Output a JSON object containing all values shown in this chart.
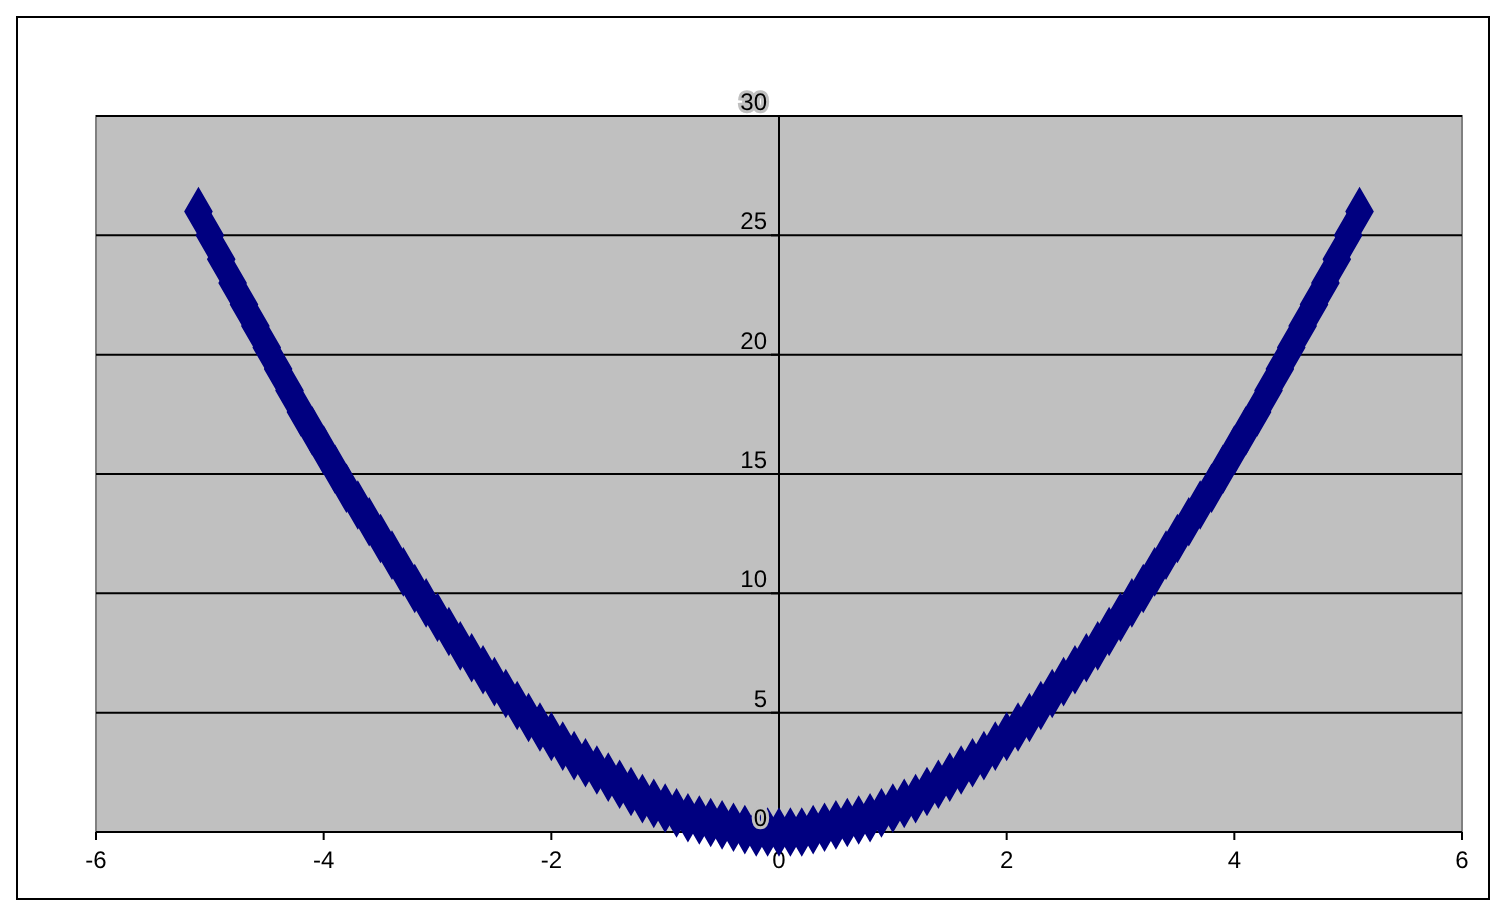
{
  "chart_data": {
    "type": "scatter",
    "marker": "diamond",
    "grid": "y",
    "xlim": [
      -6,
      6
    ],
    "ylim": [
      0,
      30
    ],
    "xticks": [
      -6,
      -4,
      -2,
      0,
      2,
      4,
      6
    ],
    "yticks": [
      0,
      5,
      10,
      15,
      20,
      25,
      30
    ],
    "series": [
      {
        "color": "#000080",
        "x": [
          -5.1,
          -5.0,
          -4.9,
          -4.8,
          -4.7,
          -4.6,
          -4.5,
          -4.4,
          -4.3,
          -4.2,
          -4.1,
          -4.0,
          -3.9,
          -3.8,
          -3.7,
          -3.6,
          -3.5,
          -3.4,
          -3.3,
          -3.2,
          -3.1,
          -3.0,
          -2.9,
          -2.8,
          -2.7,
          -2.6,
          -2.5,
          -2.4,
          -2.3,
          -2.2,
          -2.1,
          -2.0,
          -1.9,
          -1.8,
          -1.7,
          -1.6,
          -1.5,
          -1.4,
          -1.3,
          -1.2,
          -1.1,
          -1.0,
          -0.9,
          -0.8,
          -0.7,
          -0.6,
          -0.5,
          -0.4,
          -0.3,
          -0.2,
          -0.1,
          0,
          0.1,
          0.2,
          0.3,
          0.4,
          0.5,
          0.6,
          0.7,
          0.8,
          0.9,
          1.0,
          1.1,
          1.2,
          1.3,
          1.4,
          1.5,
          1.6,
          1.7,
          1.8,
          1.9,
          2.0,
          2.1,
          2.2,
          2.3,
          2.4,
          2.5,
          2.6,
          2.7,
          2.8,
          2.9,
          3.0,
          3.1,
          3.2,
          3.3,
          3.4,
          3.5,
          3.6,
          3.7,
          3.8,
          3.9,
          4.0,
          4.1,
          4.2,
          4.3,
          4.4,
          4.5,
          4.6,
          4.7,
          4.8,
          4.9,
          5.0,
          5.1
        ],
        "values": [
          26.0,
          25,
          24.0,
          23.0,
          22.1,
          21.2,
          20.3,
          19.4,
          18.5,
          17.6,
          16.8,
          16,
          15.2,
          14.4,
          13.7,
          13.0,
          12.3,
          11.6,
          10.9,
          10.2,
          9.6,
          9,
          8.4,
          7.8,
          7.3,
          6.8,
          6.3,
          5.8,
          5.3,
          4.8,
          4.4,
          4,
          3.6,
          3.2,
          2.9,
          2.6,
          2.3,
          2.0,
          1.7,
          1.4,
          1.2,
          1,
          0.8,
          0.6,
          0.5,
          0.4,
          0.3,
          0.2,
          0.1,
          0,
          0,
          0,
          0,
          0,
          0.1,
          0.2,
          0.3,
          0.4,
          0.5,
          0.6,
          0.8,
          1,
          1.2,
          1.4,
          1.7,
          2.0,
          2.3,
          2.6,
          2.9,
          3.2,
          3.6,
          4,
          4.4,
          4.8,
          5.3,
          5.8,
          6.3,
          6.8,
          7.3,
          7.8,
          8.4,
          9,
          9.6,
          10.2,
          10.9,
          11.6,
          12.3,
          13.0,
          13.7,
          14.4,
          15.2,
          16,
          16.8,
          17.6,
          18.5,
          19.4,
          20.3,
          21.2,
          22.1,
          23.0,
          24.0,
          25,
          26.0
        ]
      }
    ]
  }
}
